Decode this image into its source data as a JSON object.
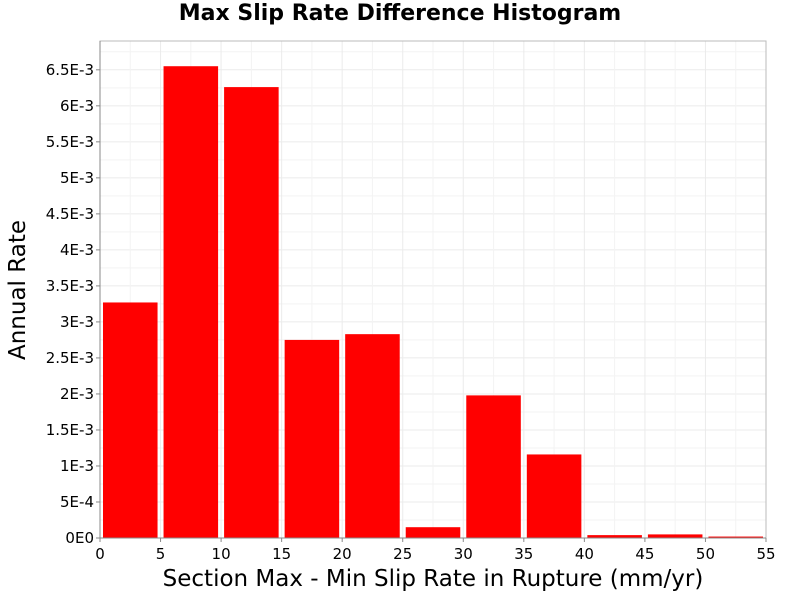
{
  "chart_data": {
    "type": "bar",
    "title": "Max Slip Rate Difference Histogram",
    "xlabel": "Section Max - Min Slip Rate in Rupture (mm/yr)",
    "ylabel": "Annual Rate",
    "xlim": [
      0,
      55
    ],
    "ylim": [
      0,
      0.0069
    ],
    "grid": true,
    "bar_color": "#ff0000",
    "bins": [
      {
        "x_start": 0,
        "x_end": 5,
        "value": 0.00327
      },
      {
        "x_start": 5,
        "x_end": 10,
        "value": 0.00655
      },
      {
        "x_start": 10,
        "x_end": 15,
        "value": 0.00626
      },
      {
        "x_start": 15,
        "x_end": 20,
        "value": 0.00275
      },
      {
        "x_start": 20,
        "x_end": 25,
        "value": 0.00283
      },
      {
        "x_start": 25,
        "x_end": 30,
        "value": 0.00015
      },
      {
        "x_start": 30,
        "x_end": 35,
        "value": 0.00198
      },
      {
        "x_start": 35,
        "x_end": 40,
        "value": 0.00116
      },
      {
        "x_start": 40,
        "x_end": 45,
        "value": 4e-05
      },
      {
        "x_start": 45,
        "x_end": 50,
        "value": 5e-05
      },
      {
        "x_start": 50,
        "x_end": 55,
        "value": 2e-05
      }
    ],
    "x_ticks": [
      {
        "value": 0,
        "label": "0"
      },
      {
        "value": 5,
        "label": "5"
      },
      {
        "value": 10,
        "label": "10"
      },
      {
        "value": 15,
        "label": "15"
      },
      {
        "value": 20,
        "label": "20"
      },
      {
        "value": 25,
        "label": "25"
      },
      {
        "value": 30,
        "label": "30"
      },
      {
        "value": 35,
        "label": "35"
      },
      {
        "value": 40,
        "label": "40"
      },
      {
        "value": 45,
        "label": "45"
      },
      {
        "value": 50,
        "label": "50"
      },
      {
        "value": 55,
        "label": "55"
      }
    ],
    "y_ticks": [
      {
        "value": 0,
        "label": "0E0"
      },
      {
        "value": 0.0005,
        "label": "5E-4"
      },
      {
        "value": 0.001,
        "label": "1E-3"
      },
      {
        "value": 0.0015,
        "label": "1.5E-3"
      },
      {
        "value": 0.002,
        "label": "2E-3"
      },
      {
        "value": 0.0025,
        "label": "2.5E-3"
      },
      {
        "value": 0.003,
        "label": "3E-3"
      },
      {
        "value": 0.0035,
        "label": "3.5E-3"
      },
      {
        "value": 0.004,
        "label": "4E-3"
      },
      {
        "value": 0.0045,
        "label": "4.5E-3"
      },
      {
        "value": 0.005,
        "label": "5E-3"
      },
      {
        "value": 0.0055,
        "label": "5.5E-3"
      },
      {
        "value": 0.006,
        "label": "6E-3"
      },
      {
        "value": 0.0065,
        "label": "6.5E-3"
      }
    ]
  }
}
